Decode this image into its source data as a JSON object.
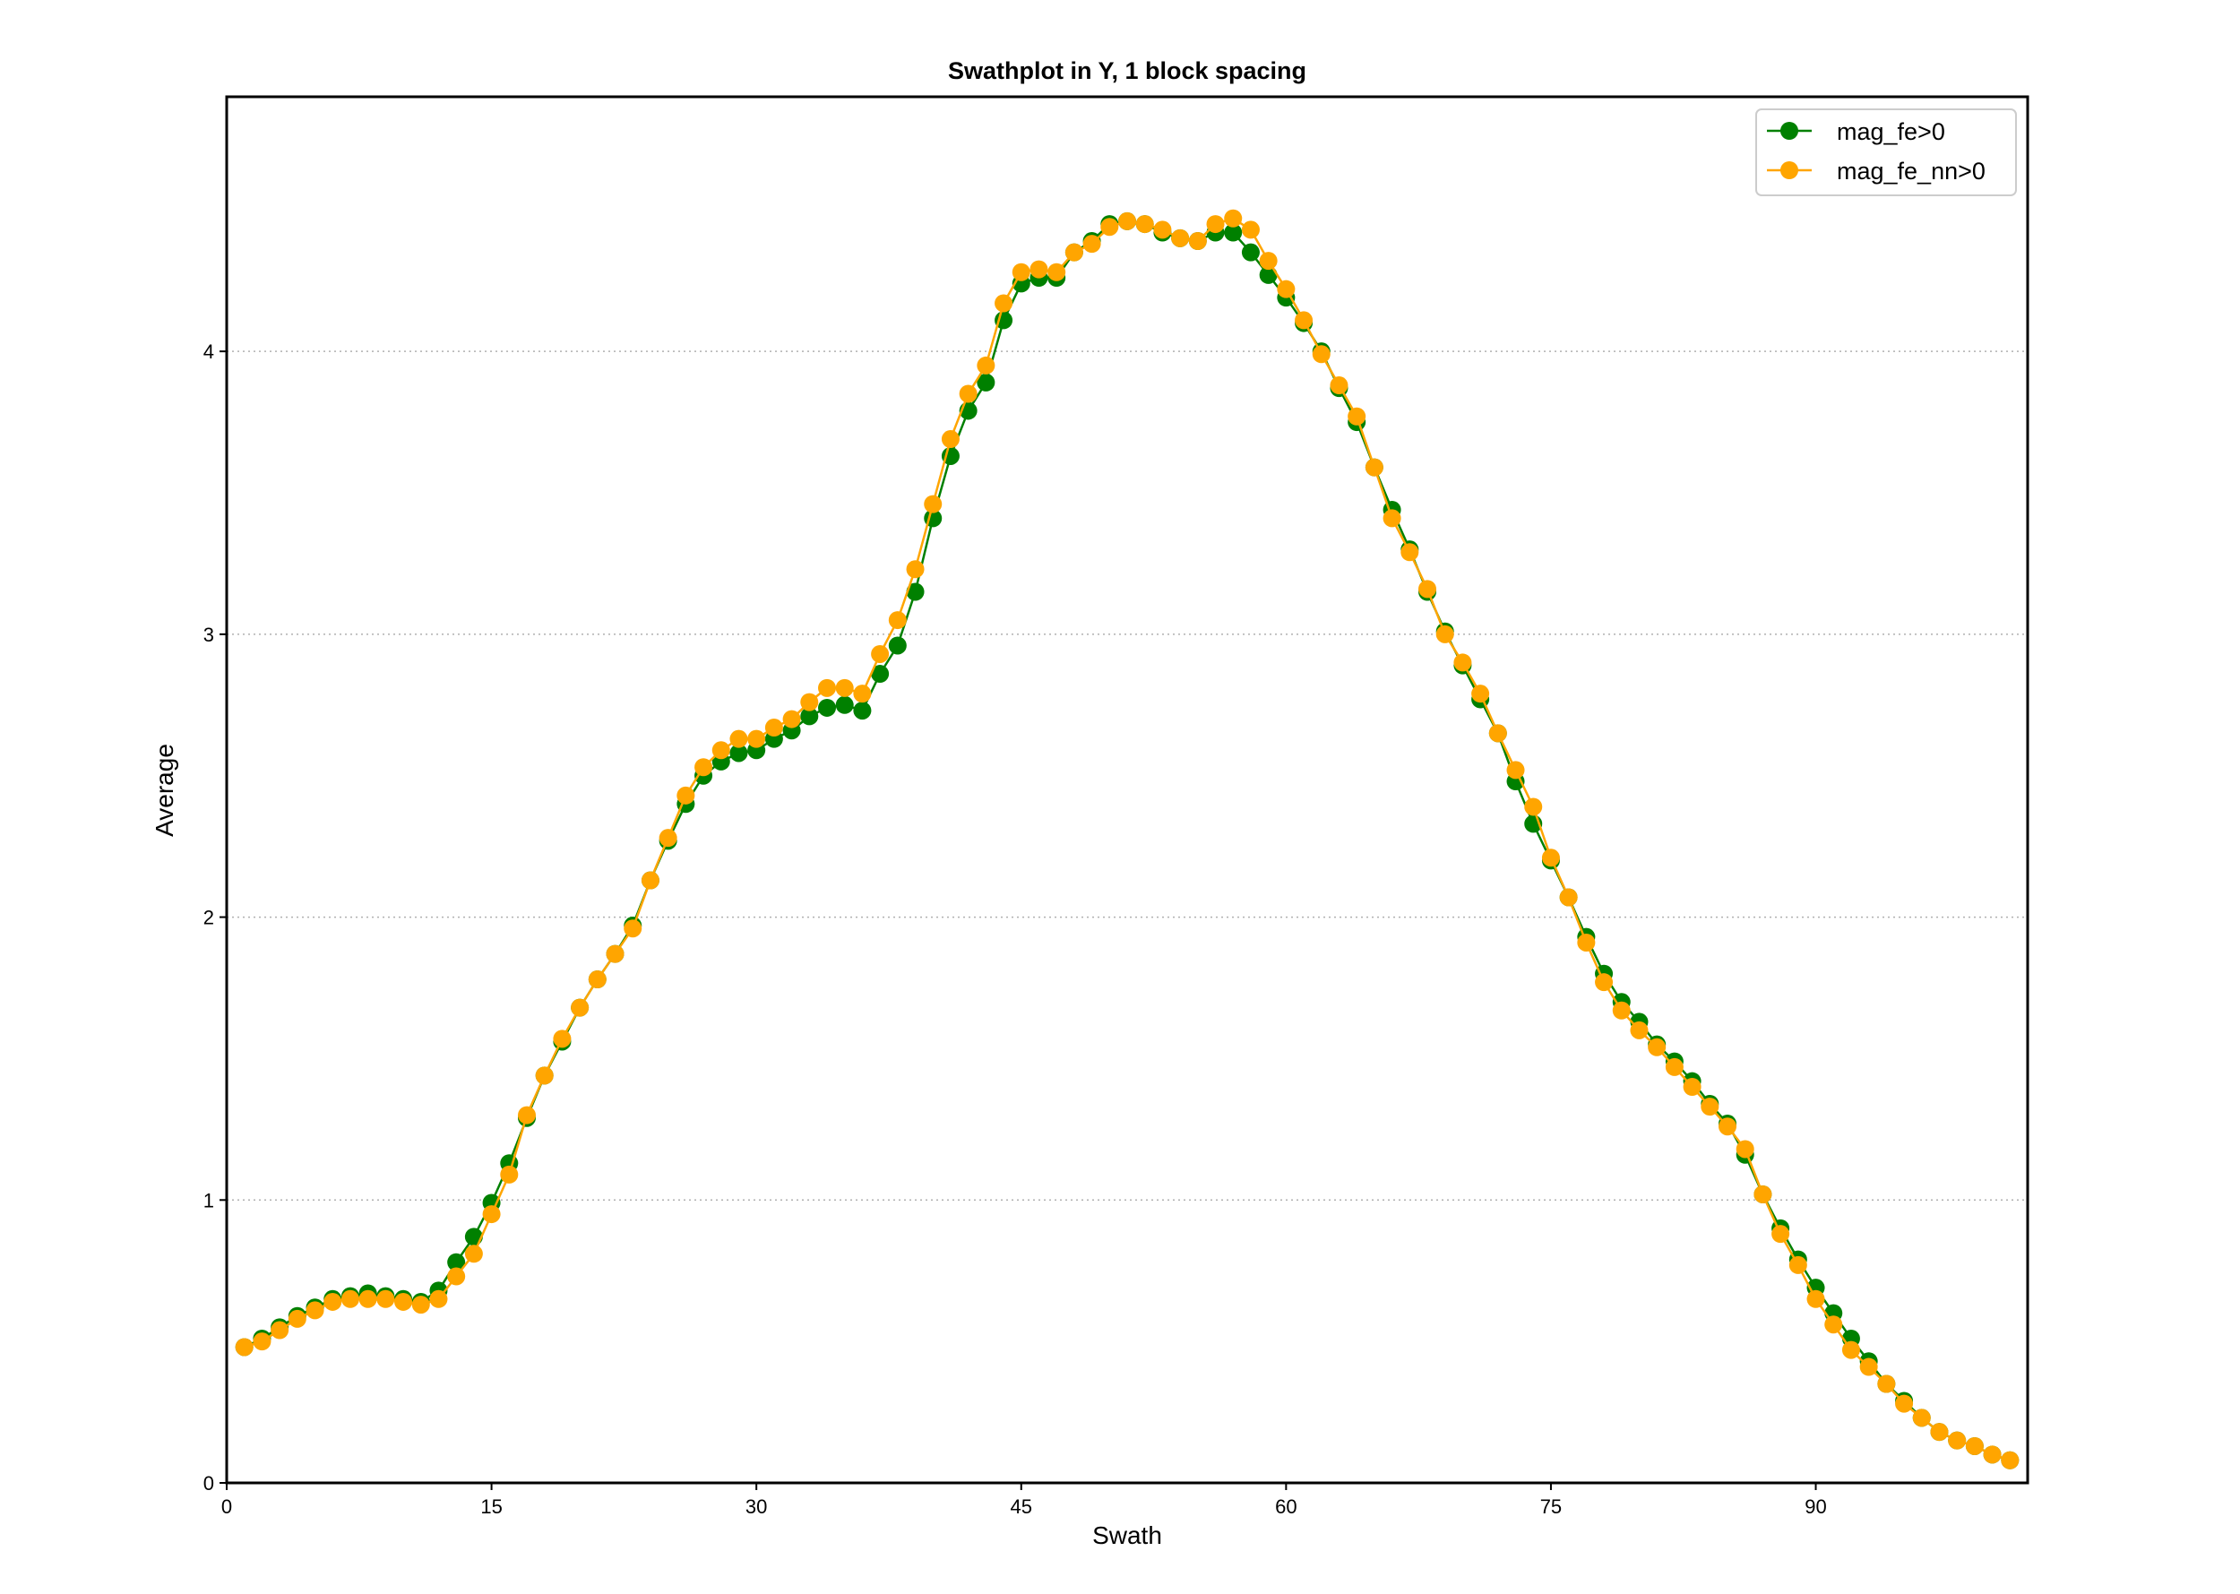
{
  "chart_data": {
    "type": "line",
    "title": "Swathplot in Y, 1 block spacing",
    "xlabel": "Swath",
    "ylabel": "Average",
    "xlim": [
      0,
      102
    ],
    "ylim": [
      0,
      4.9
    ],
    "xticks": [
      0,
      15,
      30,
      45,
      60,
      75,
      90
    ],
    "yticks": [
      0,
      1,
      2,
      3,
      4
    ],
    "grid": "y-dotted",
    "legend_position": "top-right",
    "x": [
      1,
      2,
      3,
      4,
      5,
      6,
      7,
      8,
      9,
      10,
      11,
      12,
      13,
      14,
      15,
      16,
      17,
      18,
      19,
      20,
      21,
      22,
      23,
      24,
      25,
      26,
      27,
      28,
      29,
      30,
      31,
      32,
      33,
      34,
      35,
      36,
      37,
      38,
      39,
      40,
      41,
      42,
      43,
      44,
      45,
      46,
      47,
      48,
      49,
      50,
      51,
      52,
      53,
      54,
      55,
      56,
      57,
      58,
      59,
      60,
      61,
      62,
      63,
      64,
      65,
      66,
      67,
      68,
      69,
      70,
      71,
      72,
      73,
      74,
      75,
      76,
      77,
      78,
      79,
      80,
      81,
      82,
      83,
      84,
      85,
      86,
      87,
      88,
      89,
      90,
      91,
      92,
      93,
      94,
      95,
      96,
      97,
      98,
      99,
      100,
      101
    ],
    "series": [
      {
        "name": "mag_fe>0",
        "color": "#008000",
        "values": [
          0.48,
          0.51,
          0.55,
          0.59,
          0.62,
          0.65,
          0.66,
          0.67,
          0.66,
          0.65,
          0.64,
          0.68,
          0.78,
          0.87,
          0.99,
          1.13,
          1.29,
          1.44,
          1.56,
          1.68,
          1.78,
          1.87,
          1.97,
          2.13,
          2.27,
          2.4,
          2.5,
          2.55,
          2.58,
          2.59,
          2.63,
          2.66,
          2.71,
          2.74,
          2.75,
          2.73,
          2.86,
          2.96,
          3.15,
          3.41,
          3.63,
          3.79,
          3.89,
          4.11,
          4.24,
          4.26,
          4.26,
          4.35,
          4.39,
          4.45,
          4.46,
          4.45,
          4.42,
          4.4,
          4.39,
          4.42,
          4.42,
          4.35,
          4.27,
          4.19,
          4.1,
          4.0,
          3.87,
          3.75,
          3.59,
          3.44,
          3.3,
          3.15,
          3.01,
          2.89,
          2.77,
          2.65,
          2.48,
          2.33,
          2.2,
          2.07,
          1.93,
          1.8,
          1.7,
          1.63,
          1.55,
          1.49,
          1.42,
          1.34,
          1.27,
          1.16,
          1.02,
          0.9,
          0.79,
          0.69,
          0.6,
          0.51,
          0.43,
          0.35,
          0.29,
          0.23,
          0.18,
          0.15,
          0.13,
          0.1,
          0.08
        ]
      },
      {
        "name": "mag_fe_nn>0",
        "color": "#FFA500",
        "values": [
          0.48,
          0.5,
          0.54,
          0.58,
          0.61,
          0.64,
          0.65,
          0.65,
          0.65,
          0.64,
          0.63,
          0.65,
          0.73,
          0.81,
          0.95,
          1.09,
          1.3,
          1.44,
          1.57,
          1.68,
          1.78,
          1.87,
          1.96,
          2.13,
          2.28,
          2.43,
          2.53,
          2.59,
          2.63,
          2.63,
          2.67,
          2.7,
          2.76,
          2.81,
          2.81,
          2.79,
          2.93,
          3.05,
          3.23,
          3.46,
          3.69,
          3.85,
          3.95,
          4.17,
          4.28,
          4.29,
          4.28,
          4.35,
          4.38,
          4.44,
          4.46,
          4.45,
          4.43,
          4.4,
          4.39,
          4.45,
          4.47,
          4.43,
          4.32,
          4.22,
          4.11,
          3.99,
          3.88,
          3.77,
          3.59,
          3.41,
          3.29,
          3.16,
          3.0,
          2.9,
          2.79,
          2.65,
          2.52,
          2.39,
          2.21,
          2.07,
          1.91,
          1.77,
          1.67,
          1.6,
          1.54,
          1.47,
          1.4,
          1.33,
          1.26,
          1.18,
          1.02,
          0.88,
          0.77,
          0.65,
          0.56,
          0.47,
          0.41,
          0.35,
          0.28,
          0.23,
          0.18,
          0.15,
          0.13,
          0.1,
          0.08
        ]
      }
    ]
  }
}
